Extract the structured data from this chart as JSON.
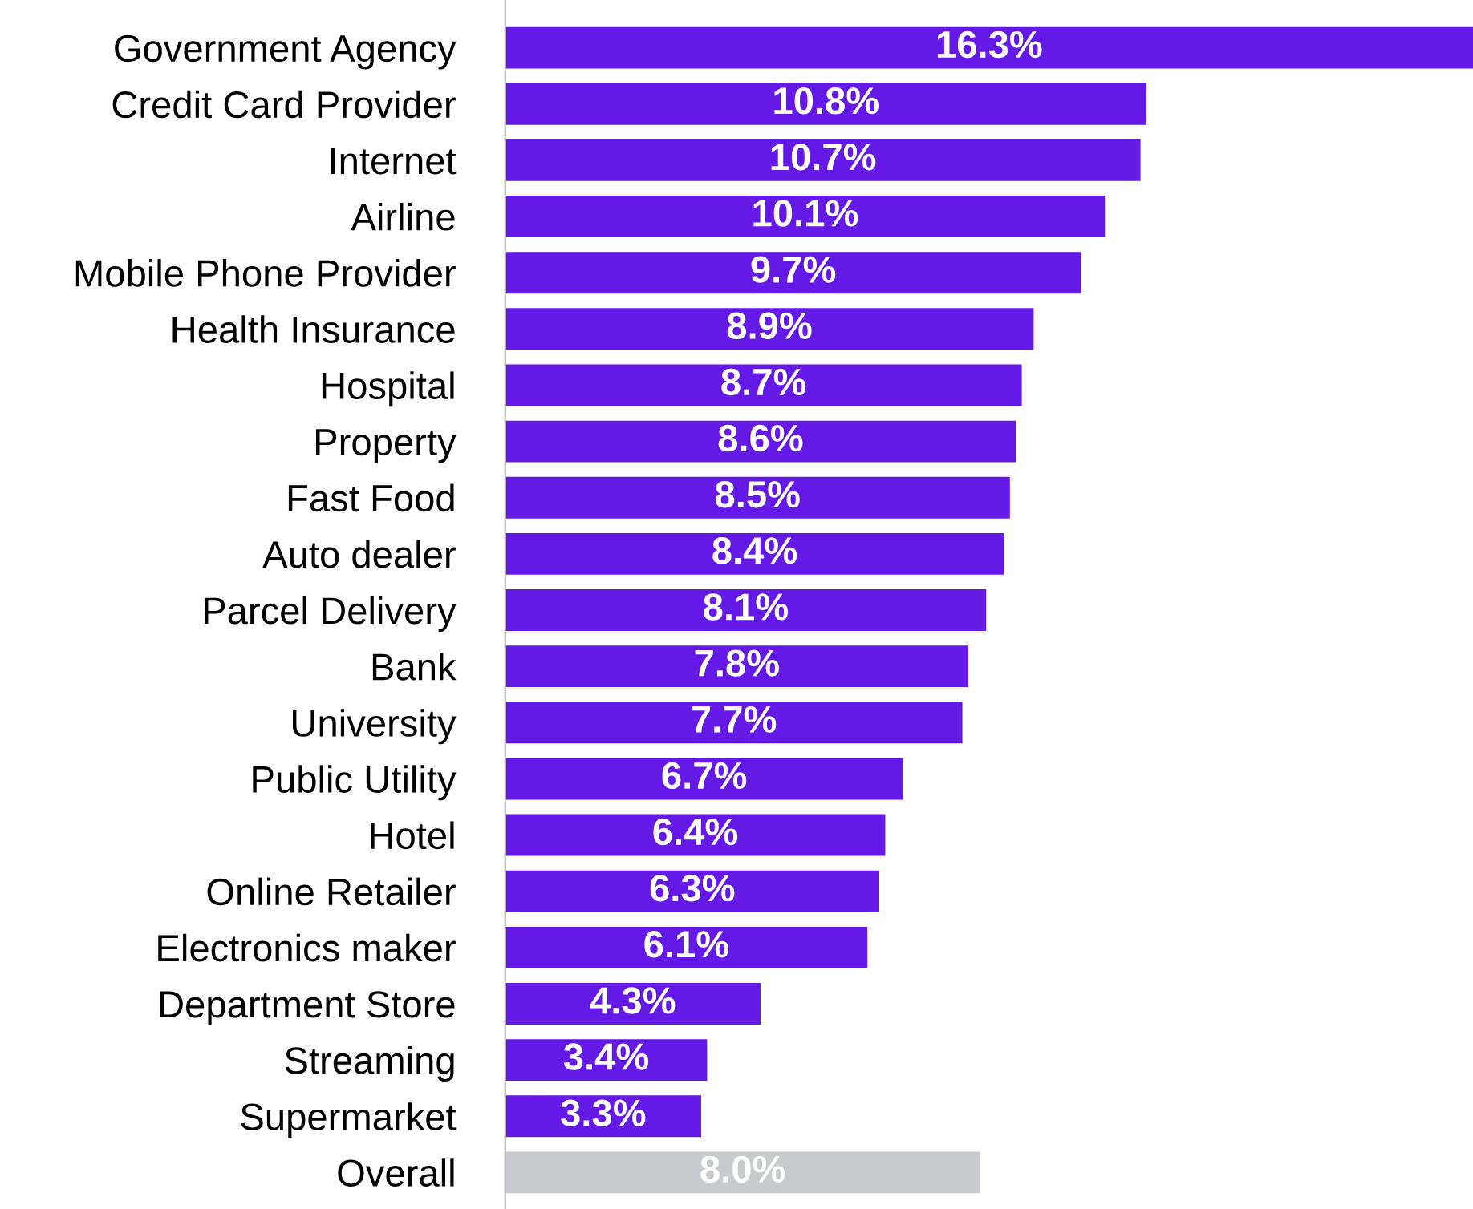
{
  "chart_data": {
    "type": "bar",
    "orientation": "horizontal",
    "categories": [
      "Government Agency",
      "Credit Card Provider",
      "Internet",
      "Airline",
      "Mobile Phone Provider",
      "Health Insurance",
      "Hospital",
      "Property",
      "Fast Food",
      "Auto dealer",
      "Parcel Delivery",
      "Bank",
      "University",
      "Public Utility",
      "Hotel",
      "Online Retailer",
      "Electronics maker",
      "Department Store",
      "Streaming",
      "Supermarket",
      "Overall"
    ],
    "values": [
      16.3,
      10.8,
      10.7,
      10.1,
      9.7,
      8.9,
      8.7,
      8.6,
      8.5,
      8.4,
      8.1,
      7.8,
      7.7,
      6.7,
      6.4,
      6.3,
      6.1,
      4.3,
      3.4,
      3.3,
      8.0
    ],
    "value_labels": [
      "16.3%",
      "10.8%",
      "10.7%",
      "10.1%",
      "9.7%",
      "8.9%",
      "8.7%",
      "8.6%",
      "8.5%",
      "8.4%",
      "8.1%",
      "7.8%",
      "7.7%",
      "6.7%",
      "6.4%",
      "6.3%",
      "6.1%",
      "4.3%",
      "3.4%",
      "3.3%",
      "8.0%"
    ],
    "colors": [
      "#6519e6",
      "#6519e6",
      "#6519e6",
      "#6519e6",
      "#6519e6",
      "#6519e6",
      "#6519e6",
      "#6519e6",
      "#6519e6",
      "#6519e6",
      "#6519e6",
      "#6519e6",
      "#6519e6",
      "#6519e6",
      "#6519e6",
      "#6519e6",
      "#6519e6",
      "#6519e6",
      "#6519e6",
      "#6519e6",
      "#c8cacd"
    ]
  }
}
